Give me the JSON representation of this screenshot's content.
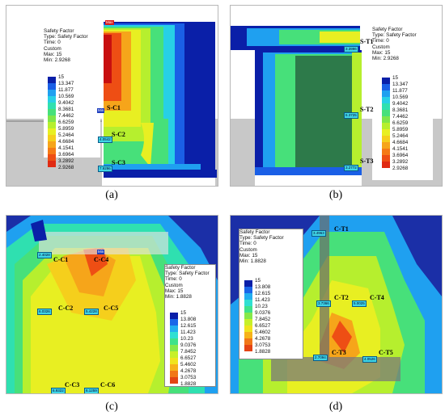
{
  "panels": {
    "a": {
      "caption": "(a)",
      "legend": {
        "title": "Safety Factor",
        "type": "Type: Safety Factor",
        "time": "Time: 0",
        "custom": "Custom",
        "max": "Max: 15",
        "min": "Min: 2.9268"
      },
      "scale": [
        "15",
        "13.347",
        "11.877",
        "10.569",
        "9.4042",
        "8.3681",
        "7.4462",
        "6.6259",
        "5.8959",
        "5.2464",
        "4.6684",
        "4.1541",
        "3.6964",
        "3.2892",
        "2.9268"
      ],
      "tags": {
        "max": "Max",
        "min": "Min"
      },
      "points": [
        {
          "label": "S-C1",
          "value": ""
        },
        {
          "label": "S-C2",
          "value": "4.0542"
        },
        {
          "label": "S-C3",
          "value": "7.9296"
        }
      ]
    },
    "b": {
      "caption": "(b)",
      "legend": {
        "title": "Safety Factor",
        "type": "Type: Safety Factor",
        "time": "Time: 0",
        "custom": "Custom",
        "max": "Max: 15",
        "min": "Min: 2.9268"
      },
      "scale": [
        "15",
        "13.347",
        "11.877",
        "10.569",
        "9.4042",
        "8.3681",
        "7.4462",
        "6.6259",
        "5.8959",
        "5.2464",
        "4.6684",
        "4.1541",
        "3.6964",
        "3.2892",
        "2.9268"
      ],
      "points": [
        {
          "label": "S-T1",
          "value": "3.3996"
        },
        {
          "label": "S-T2",
          "value": "6.3725"
        },
        {
          "label": "S-T3",
          "value": "3.2772"
        }
      ]
    },
    "c": {
      "caption": "(c)",
      "legend": {
        "title": "Safety Factor",
        "type": "Type: Safety Factor",
        "time": "Time: 0",
        "custom": "Custom",
        "max": "Max: 15",
        "min": "Min: 1.8828"
      },
      "scale": [
        "15",
        "13.808",
        "12.615",
        "11.423",
        "10.23",
        "9.0376",
        "7.8452",
        "6.6527",
        "5.4602",
        "4.2678",
        "3.0753",
        "1.8828"
      ],
      "tags": {
        "min": "Min"
      },
      "points": [
        {
          "label": "C-C1",
          "value": "2.4028"
        },
        {
          "label": "C-C4",
          "value": ""
        },
        {
          "label": "C-C2",
          "value": "6.0326"
        },
        {
          "label": "C-C5",
          "value": "5.4228"
        },
        {
          "label": "C-C3",
          "value": "6.9322"
        },
        {
          "label": "C-C6",
          "value": "6.1259"
        }
      ]
    },
    "d": {
      "caption": "(d)",
      "legend": {
        "title": "Safety Factor",
        "type": "Type: Safety Factor",
        "time": "Time: 0",
        "custom": "Custom",
        "max": "Max: 15",
        "min": "Min: 1.8828"
      },
      "scale": [
        "15",
        "13.808",
        "12.615",
        "11.423",
        "10.23",
        "9.0376",
        "7.8452",
        "6.6527",
        "5.4602",
        "4.2678",
        "3.0753",
        "1.8828"
      ],
      "points": [
        {
          "label": "C-T1",
          "value": "3.4963"
        },
        {
          "label": "C-T2",
          "value": "3.7366"
        },
        {
          "label": "C-T4",
          "value": "5.0025"
        },
        {
          "label": "C-T3",
          "value": "2.7094"
        },
        {
          "label": "C-T5",
          "value": "4.0526"
        }
      ]
    }
  },
  "colors": {
    "scale15": [
      "#0a1fa8",
      "#1a5fe6",
      "#1fa0f0",
      "#27d0e6",
      "#2fe0b0",
      "#47e07a",
      "#7fe64a",
      "#b6ef2e",
      "#e8ef22",
      "#f5cf1c",
      "#f6a51a",
      "#f57a16",
      "#ee4e14",
      "#e02a12",
      "#c80f0f"
    ],
    "scale12": [
      "#0a1fa8",
      "#1a66e8",
      "#22aef0",
      "#2fdfd2",
      "#3fe28a",
      "#86e84a",
      "#c7f02a",
      "#f0e41e",
      "#f6b21a",
      "#f17718",
      "#e44414",
      "#c80f0f"
    ]
  }
}
